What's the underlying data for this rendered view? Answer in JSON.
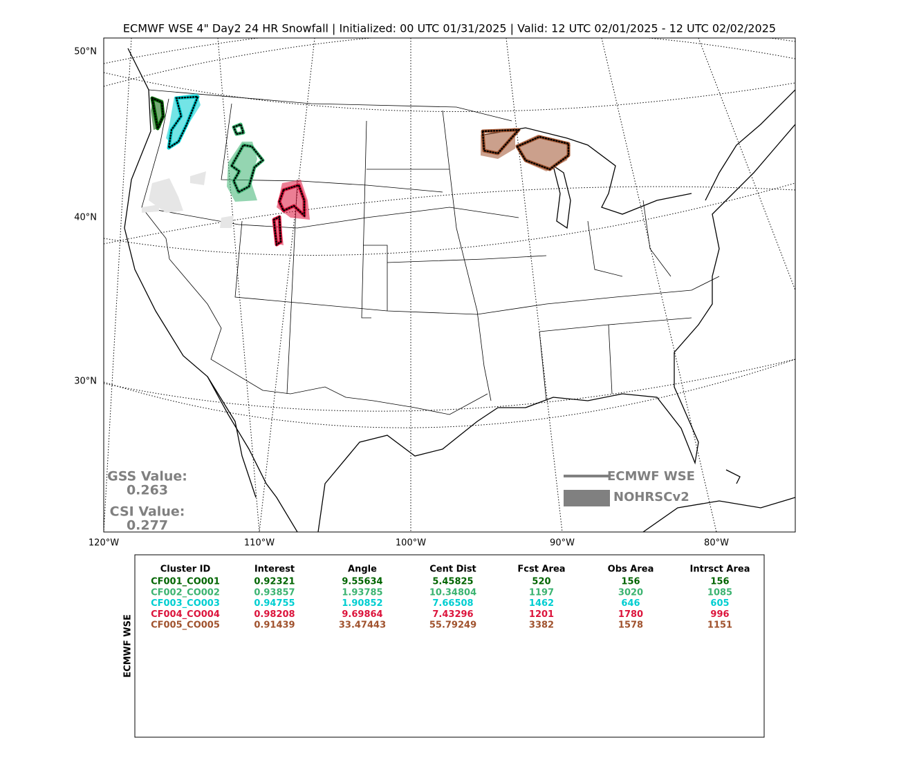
{
  "title": "ECMWF WSE 4\" Day2 24 HR Snowfall | Initialized: 00 UTC 01/31/2025 | Valid: 12 UTC 02/01/2025 - 12 UTC 02/02/2025",
  "map": {
    "lat_labels": [
      "50°N",
      "40°N",
      "30°N"
    ],
    "lon_labels": [
      "120°W",
      "110°W",
      "100°W",
      "90°W",
      "80°W"
    ],
    "scores": [
      {
        "label": "GSS Value:",
        "value": "0.263"
      },
      {
        "label": "CSI Value:",
        "value": "0.277"
      }
    ],
    "legend": [
      {
        "label": "ECMWF WSE",
        "color": "#808080"
      },
      {
        "label": "NOHRSCv2",
        "color": "#808080"
      }
    ]
  },
  "table": {
    "side_label": "ECMWF WSE",
    "columns": [
      "Cluster ID",
      "Interest",
      "Angle",
      "Cent Dist",
      "Fcst Area",
      "Obs Area",
      "Intrsct Area"
    ],
    "rows": [
      {
        "color": "#006400",
        "cells": [
          "CF001_CO001",
          "0.92321",
          "9.55634",
          "5.45825",
          "520",
          "156",
          "156"
        ]
      },
      {
        "color": "#3cb371",
        "cells": [
          "CF002_CO002",
          "0.93857",
          "1.93785",
          "10.34804",
          "1197",
          "3020",
          "1085"
        ]
      },
      {
        "color": "#00ced1",
        "cells": [
          "CF003_CO003",
          "0.94755",
          "1.90852",
          "7.66508",
          "1462",
          "646",
          "605"
        ]
      },
      {
        "color": "#dc143c",
        "cells": [
          "CF004_CO004",
          "0.98208",
          "9.69864",
          "7.43296",
          "1201",
          "1780",
          "996"
        ]
      },
      {
        "color": "#a0522d",
        "cells": [
          "CF005_CO005",
          "0.91439",
          "33.47443",
          "55.79249",
          "3382",
          "1578",
          "1151"
        ]
      }
    ]
  }
}
